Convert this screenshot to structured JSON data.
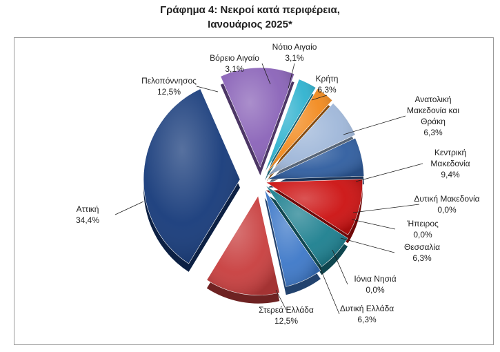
{
  "title_line1": "Γράφημα 4: Νεκροί κατά περιφέρεια,",
  "title_line2": "Ιανουάριος 2025*",
  "chart_data": {
    "type": "pie",
    "title": "Γράφημα 4: Νεκροί κατά περιφέρεια, Ιανουάριος 2025*",
    "unit": "%",
    "legend": "none",
    "slices": [
      {
        "label": [
          "Βόρειο Αιγαίο"
        ],
        "value": 3.1,
        "display": "3,1%",
        "color": "#2fb2cf"
      },
      {
        "label": [
          "Νότιο Αιγαίο"
        ],
        "value": 3.1,
        "display": "3,1%",
        "color": "#f28a1e"
      },
      {
        "label": [
          "Κρήτη"
        ],
        "value": 6.3,
        "display": "6,3%",
        "color": "#9fb7d9"
      },
      {
        "label": [
          "Ανατολική",
          "Μακεδονία και",
          "Θράκη"
        ],
        "value": 6.3,
        "display": "6,3%",
        "color": "#2f5d9f"
      },
      {
        "label": [
          "Κεντρική",
          "Μακεδονία"
        ],
        "value": 9.4,
        "display": "9,4%",
        "color": "#cc1111"
      },
      {
        "label": [
          "Δυτική Μακεδονία"
        ],
        "value": 0.0,
        "display": "0,0%",
        "color": "#1f6e8a"
      },
      {
        "label": [
          "Ήπειρος"
        ],
        "value": 0.0,
        "display": "0,0%",
        "color": "#1f6e8a"
      },
      {
        "label": [
          "Θεσσαλία"
        ],
        "value": 6.3,
        "display": "6,3%",
        "color": "#1c7f8f"
      },
      {
        "label": [
          "Ιόνια Νησιά"
        ],
        "value": 0.0,
        "display": "0,0%",
        "color": "#2d5f9e"
      },
      {
        "label": [
          "Δυτική Ελλάδα"
        ],
        "value": 6.3,
        "display": "6,3%",
        "color": "#3d78c8"
      },
      {
        "label": [
          "Στερεά Ελλάδα"
        ],
        "value": 12.5,
        "display": "12,5%",
        "color": "#c83e3e"
      },
      {
        "label": [
          "Αττική"
        ],
        "value": 34.4,
        "display": "34,4%",
        "color": "#163a7a"
      },
      {
        "label": [
          "Πελοπόννησος"
        ],
        "value": 12.5,
        "display": "12,5%",
        "color": "#8a63b8"
      }
    ]
  }
}
